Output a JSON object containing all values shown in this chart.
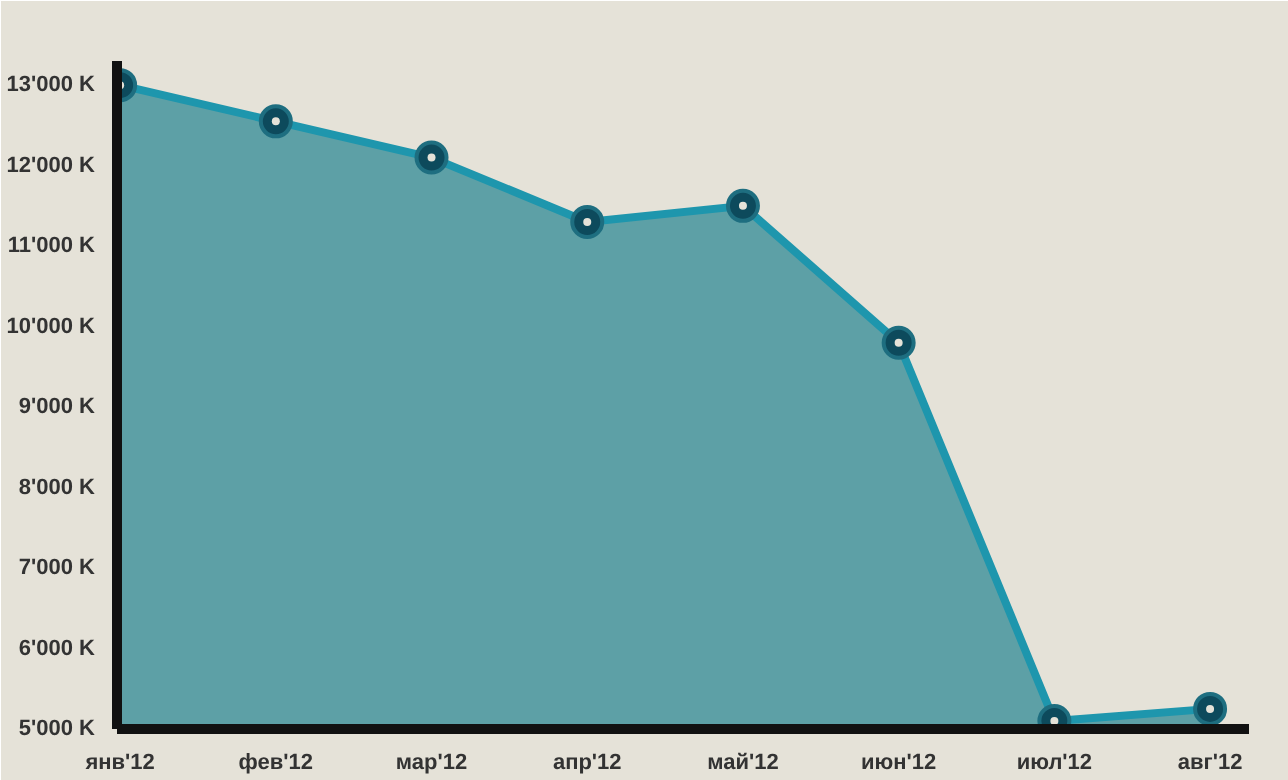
{
  "chart_data": {
    "type": "area",
    "categories": [
      "янв'12",
      "фев'12",
      "мар'12",
      "апр'12",
      "май'12",
      "июн'12",
      "июл'12",
      "авг'12"
    ],
    "series": [
      {
        "color": "#1e96ad",
        "values": [
          13000,
          12550,
          12100,
          11300,
          11500,
          9800,
          5100,
          5250
        ]
      }
    ],
    "ylim": [
      5000,
      13300
    ],
    "yticks": [
      {
        "value": 5000,
        "label": "5'000 K"
      },
      {
        "value": 6000,
        "label": "6'000 K"
      },
      {
        "value": 7000,
        "label": "7'000 K"
      },
      {
        "value": 8000,
        "label": "8'000 K"
      },
      {
        "value": 9000,
        "label": "9'000 K"
      },
      {
        "value": 10000,
        "label": "10'000 K"
      },
      {
        "value": 11000,
        "label": "11'000 K"
      },
      {
        "value": 12000,
        "label": "12'000 K"
      },
      {
        "value": 13000,
        "label": "13'000 K"
      }
    ],
    "marker": "circle",
    "grid": false
  }
}
